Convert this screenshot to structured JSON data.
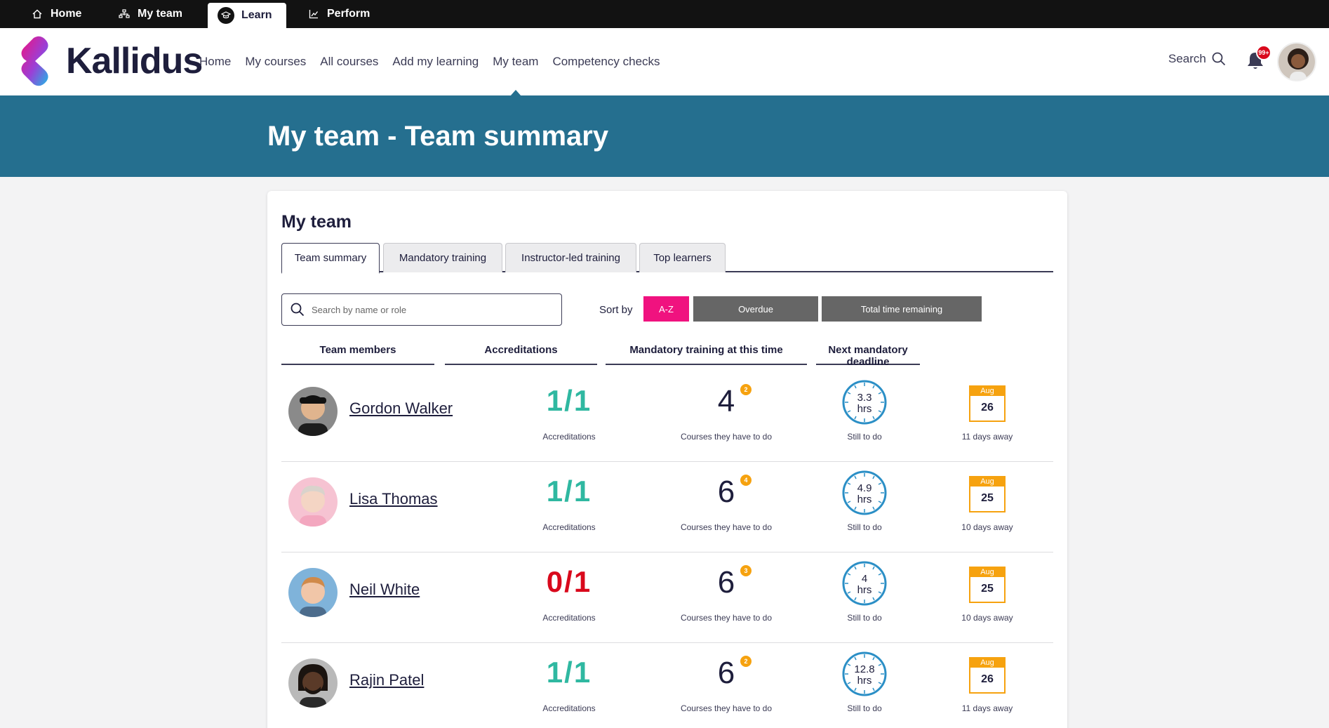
{
  "app_switcher": {
    "tabs": [
      {
        "label": "Home",
        "icon": "home-icon"
      },
      {
        "label": "My team",
        "icon": "org-chart-icon"
      },
      {
        "label": "Learn",
        "icon": "graduation-cap-icon",
        "active": true
      },
      {
        "label": "Perform",
        "icon": "chart-icon"
      }
    ]
  },
  "header": {
    "brand": "Kallidus",
    "nav": [
      {
        "label": "Home"
      },
      {
        "label": "My courses"
      },
      {
        "label": "All courses"
      },
      {
        "label": "Add my learning"
      },
      {
        "label": "My team",
        "current": true
      },
      {
        "label": "Competency checks"
      }
    ],
    "search_label": "Search",
    "notification_count": "99+"
  },
  "banner": {
    "title": "My team - Team summary"
  },
  "card": {
    "title": "My team",
    "tabs": [
      {
        "label": "Team summary",
        "active": true
      },
      {
        "label": "Mandatory training"
      },
      {
        "label": "Instructor-led training"
      },
      {
        "label": "Top learners"
      }
    ],
    "search_placeholder": "Search by name or role",
    "sort_label": "Sort by",
    "sort_options": [
      {
        "label": "A-Z",
        "active": true
      },
      {
        "label": "Overdue"
      },
      {
        "label": "Total time remaining"
      }
    ],
    "columns": {
      "members": "Team members",
      "accreditations": "Accreditations",
      "mandatory": "Mandatory training at this time",
      "deadline": "Next mandatory deadline"
    },
    "labels": {
      "accreditations": "Accreditations",
      "courses": "Courses they have to do",
      "still": "Still to do",
      "hrs": "hrs"
    },
    "members": [
      {
        "name": "Gordon Walker",
        "accreditations": "1/1",
        "acc_status": "ok",
        "courses": "4",
        "overdue": "2",
        "hours": "3.3",
        "cal_month": "Aug",
        "cal_day": "26",
        "days_away": "11 days away"
      },
      {
        "name": "Lisa Thomas",
        "accreditations": "1/1",
        "acc_status": "ok",
        "courses": "6",
        "overdue": "4",
        "hours": "4.9",
        "cal_month": "Aug",
        "cal_day": "25",
        "days_away": "10 days away"
      },
      {
        "name": "Neil White",
        "accreditations": "0/1",
        "acc_status": "bad",
        "courses": "6",
        "overdue": "3",
        "hours": "4",
        "cal_month": "Aug",
        "cal_day": "25",
        "days_away": "10 days away"
      },
      {
        "name": "Rajin Patel",
        "accreditations": "1/1",
        "acc_status": "ok",
        "courses": "6",
        "overdue": "2",
        "hours": "12.8",
        "cal_month": "Aug",
        "cal_day": "26",
        "days_away": "11 days away"
      }
    ]
  },
  "colors": {
    "app_bar": "#121212",
    "banner": "#256f8f",
    "accent_pink": "#f0127f",
    "teal_ok": "#2fb8a1",
    "red_bad": "#d9091c",
    "badge_orange": "#f6a20f",
    "clock_blue": "#2b8fc6"
  }
}
